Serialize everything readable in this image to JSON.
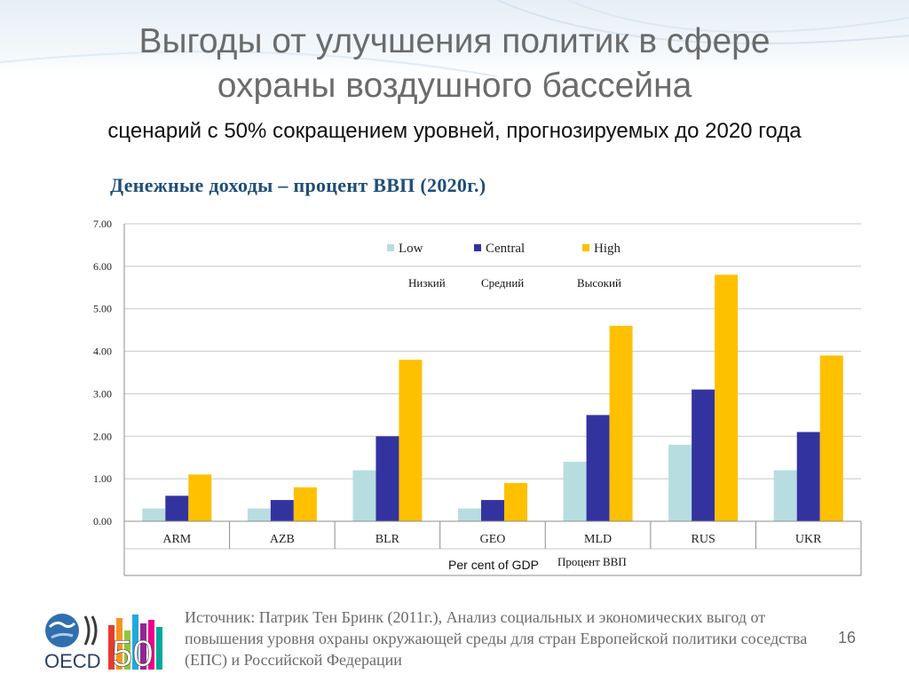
{
  "slide": {
    "title_line1": "Выгоды от улучшения политик в сфере",
    "title_line2": "охраны воздушного бассейна",
    "subtitle": "сценарий с 50% сокращением уровней, прогнозируемых до 2020 года",
    "chart_heading": "Денежные доходы – процент ВВП (2020г.)",
    "source": "Источник: Патрик Тен Бринк (2011г.), Анализ социальных и экономических выгод от повышения уровня охраны окружающей среды для стран Европейской политики соседства (ЕПС) и Российской Федерации",
    "page_number": "16",
    "logo_text": "OECD",
    "logo_number": "50"
  },
  "chart_data": {
    "type": "bar",
    "categories": [
      "ARM",
      "AZB",
      "BLR",
      "GEO",
      "MLD",
      "RUS",
      "UKR"
    ],
    "series": [
      {
        "name": "Low",
        "name_ru": "Низкий",
        "color": "#b7dde1",
        "values": [
          0.3,
          0.3,
          1.2,
          0.3,
          1.4,
          1.8,
          1.2
        ]
      },
      {
        "name": "Central",
        "name_ru": "Средний",
        "color": "#3333a0",
        "values": [
          0.6,
          0.5,
          2.0,
          0.5,
          2.5,
          3.1,
          2.1
        ]
      },
      {
        "name": "High",
        "name_ru": "Высокий",
        "color": "#ffc000",
        "values": [
          1.1,
          0.8,
          3.8,
          0.9,
          4.6,
          5.8,
          3.9
        ]
      }
    ],
    "ylim": [
      0,
      7
    ],
    "yticks": [
      "0.00",
      "1.00",
      "2.00",
      "3.00",
      "4.00",
      "5.00",
      "6.00",
      "7.00"
    ],
    "xlabel": "Per cent of GDP",
    "xlabel_ru": "Процент ВВП",
    "grid": true,
    "legend_position": "top-right"
  }
}
